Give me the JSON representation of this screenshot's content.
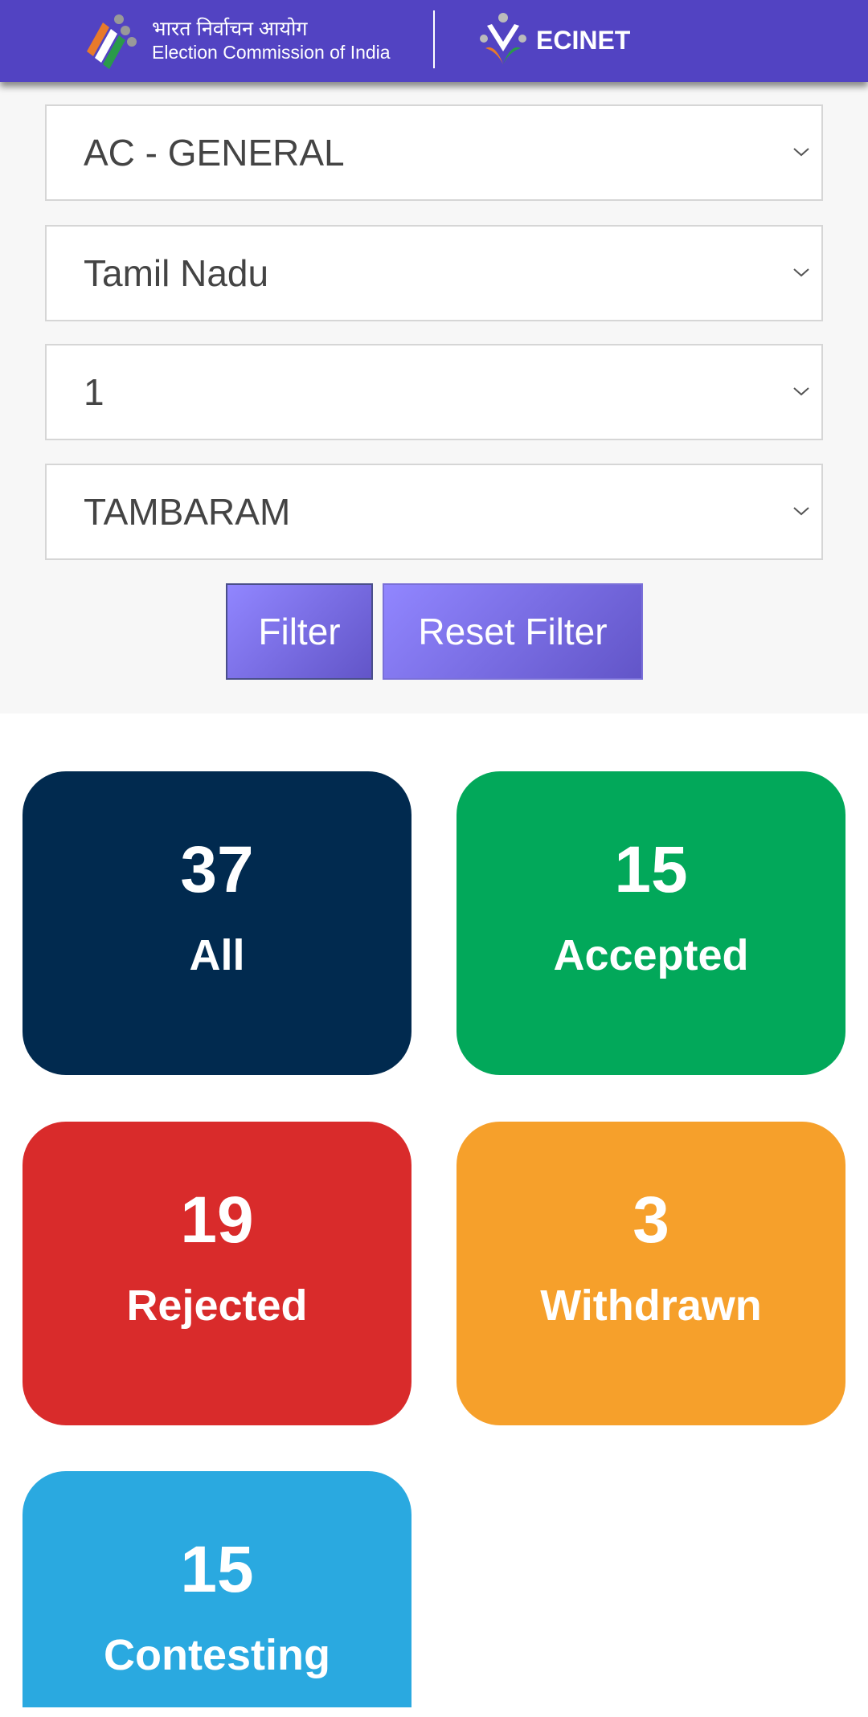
{
  "header": {
    "hindi_title": "भारत निर्वाचन आयोग",
    "title": "Election Commission of India",
    "app_name": "ECINET"
  },
  "filters": {
    "election_type": "AC - GENERAL",
    "state": "Tamil Nadu",
    "phase": "1",
    "constituency": "TAMBARAM",
    "filter_label": "Filter",
    "reset_label": "Reset Filter"
  },
  "cards": [
    {
      "count": "37",
      "label": "All",
      "color": "#012a4f"
    },
    {
      "count": "15",
      "label": "Accepted",
      "color": "#02a85a"
    },
    {
      "count": "19",
      "label": "Rejected",
      "color": "#d92b2b"
    },
    {
      "count": "3",
      "label": "Withdrawn",
      "color": "#f6a02b"
    },
    {
      "count": "15",
      "label": "Contesting",
      "color": "#2aa9e0"
    }
  ]
}
